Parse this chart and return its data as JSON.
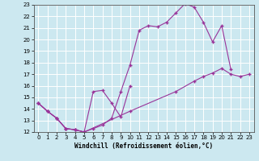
{
  "xlabel": "Windchill (Refroidissement éolien,°C)",
  "bg_color": "#cce8f0",
  "line_color": "#993399",
  "grid_color": "#ffffff",
  "xlim": [
    -0.5,
    23.5
  ],
  "ylim": [
    12,
    23
  ],
  "yticks": [
    12,
    13,
    14,
    15,
    16,
    17,
    18,
    19,
    20,
    21,
    22,
    23
  ],
  "xticks": [
    0,
    1,
    2,
    3,
    4,
    5,
    6,
    7,
    8,
    9,
    10,
    11,
    12,
    13,
    14,
    15,
    16,
    17,
    18,
    19,
    20,
    21,
    22,
    23
  ],
  "line1_x": [
    0,
    1,
    2,
    3,
    4,
    5,
    6,
    7,
    8,
    9,
    10,
    11,
    12,
    13,
    14,
    15,
    16,
    17,
    18,
    19,
    20,
    21
  ],
  "line1_y": [
    14.5,
    13.8,
    13.2,
    12.3,
    12.2,
    12.0,
    12.3,
    12.6,
    13.2,
    15.5,
    17.8,
    20.8,
    21.2,
    21.1,
    21.5,
    22.3,
    23.1,
    22.8,
    21.5,
    19.8,
    21.2,
    17.4
  ],
  "line2_x": [
    0,
    1,
    2,
    3,
    4,
    5,
    10,
    15,
    17,
    18,
    19,
    20,
    21,
    22,
    23
  ],
  "line2_y": [
    14.5,
    13.8,
    13.2,
    12.3,
    12.2,
    12.0,
    13.8,
    15.5,
    16.4,
    16.8,
    17.1,
    17.5,
    17.0,
    16.8,
    17.0
  ],
  "line3_x": [
    0,
    1,
    2,
    3,
    4,
    5,
    6,
    7,
    8,
    9,
    10
  ],
  "line3_y": [
    14.5,
    13.8,
    13.2,
    12.3,
    12.2,
    12.0,
    15.5,
    15.6,
    14.5,
    13.3,
    16.0
  ]
}
